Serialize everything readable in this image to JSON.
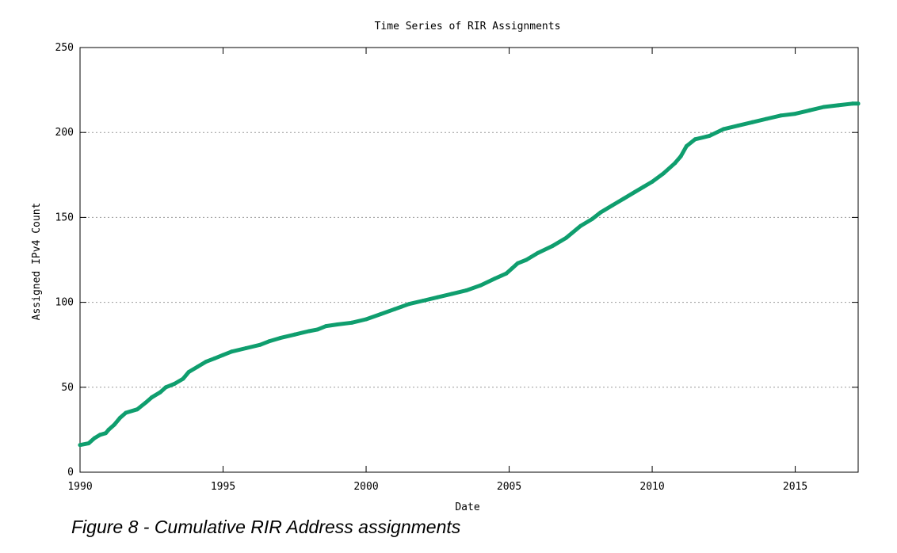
{
  "figure": {
    "caption": "Figure 8 - Cumulative RIR Address assignments"
  },
  "chart_data": {
    "type": "line",
    "title": "Time Series of RIR Assignments",
    "xlabel": "Date",
    "ylabel": "Assigned IPv4 Count",
    "xlim": [
      1990,
      2017.2
    ],
    "ylim": [
      0,
      250
    ],
    "x_ticks": [
      1990,
      1995,
      2000,
      2005,
      2010,
      2015
    ],
    "y_ticks": [
      0,
      50,
      100,
      150,
      200,
      250
    ],
    "grid": {
      "y": true,
      "x": false,
      "style": "dotted"
    },
    "colors": {
      "series": "#0f9e6e",
      "grid": "#999999",
      "axis": "#000000"
    },
    "series": [
      {
        "x": [
          1990.0,
          1990.3,
          1990.5,
          1990.7,
          1990.9,
          1991.0,
          1991.2,
          1991.4,
          1991.6,
          1992.0,
          1992.3,
          1992.5,
          1992.8,
          1993.0,
          1993.3,
          1993.6,
          1993.8,
          1994.1,
          1994.4,
          1994.7,
          1995.0,
          1995.3,
          1995.8,
          1996.3,
          1996.6,
          1997.0,
          1997.5,
          1998.0,
          1998.3,
          1998.6,
          1999.0,
          1999.5,
          2000.0,
          2000.5,
          2001.0,
          2001.5,
          2002.0,
          2002.5,
          2003.0,
          2003.5,
          2004.0,
          2004.5,
          2004.9,
          2005.1,
          2005.3,
          2005.6,
          2006.0,
          2006.5,
          2007.0,
          2007.5,
          2007.9,
          2008.2,
          2008.6,
          2009.0,
          2009.4,
          2009.7,
          2010.0,
          2010.4,
          2010.8,
          2011.0,
          2011.2,
          2011.5,
          2012.0,
          2012.5,
          2013.0,
          2013.5,
          2014.0,
          2014.5,
          2015.0,
          2015.5,
          2016.0,
          2016.5,
          2017.0,
          2017.2
        ],
        "y": [
          16,
          17,
          20,
          22,
          23,
          25,
          28,
          32,
          35,
          37,
          41,
          44,
          47,
          50,
          52,
          55,
          59,
          62,
          65,
          67,
          69,
          71,
          73,
          75,
          77,
          79,
          81,
          83,
          84,
          86,
          87,
          88,
          90,
          93,
          96,
          99,
          101,
          103,
          105,
          107,
          110,
          114,
          117,
          120,
          123,
          125,
          129,
          133,
          138,
          145,
          149,
          153,
          157,
          161,
          165,
          168,
          171,
          176,
          182,
          186,
          192,
          196,
          198,
          202,
          204,
          206,
          208,
          210,
          211,
          213,
          215,
          216,
          217,
          217
        ]
      }
    ]
  }
}
